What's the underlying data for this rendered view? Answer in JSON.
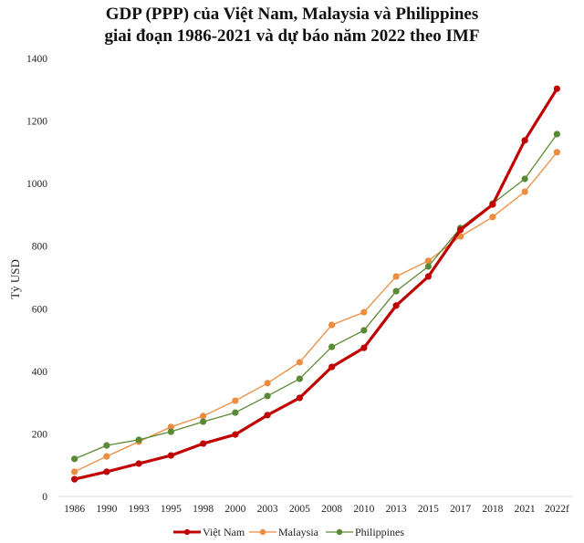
{
  "chart_data": {
    "type": "line",
    "title": [
      "GDP (PPP) của Việt Nam, Malaysia và Philippines",
      "giai đoạn 1986-2021 và dự báo năm 2022 theo IMF"
    ],
    "xlabel": "",
    "ylabel": "Tỷ USD",
    "ylim": [
      0,
      1400
    ],
    "yticks": [
      "0",
      "200",
      "400",
      "600",
      "800",
      "1000",
      "1200",
      "1400"
    ],
    "ytick_values": [
      0,
      200,
      400,
      600,
      800,
      1000,
      1200,
      1400
    ],
    "categories": [
      "1986",
      "1990",
      "1993",
      "1995",
      "1998",
      "2000",
      "2003",
      "2005",
      "2008",
      "2010",
      "2013",
      "2015",
      "2017",
      "2018",
      "2021",
      "2022f"
    ],
    "grid": false,
    "legend_position": "bottom",
    "series": [
      {
        "name": "Việt Nam",
        "color": "#c00000",
        "values": [
          55,
          79,
          105,
          131,
          169,
          198,
          260,
          315,
          414,
          475,
          610,
          703,
          852,
          933,
          1138,
          1303
        ]
      },
      {
        "name": "Malaysia",
        "color": "#ed8b3e",
        "values": [
          79,
          128,
          175,
          222,
          257,
          306,
          362,
          429,
          548,
          589,
          703,
          753,
          831,
          893,
          974,
          1100
        ]
      },
      {
        "name": "Philippines",
        "color": "#5a8a36",
        "values": [
          120,
          163,
          181,
          207,
          239,
          268,
          321,
          376,
          478,
          531,
          656,
          735,
          858,
          936,
          1015,
          1158
        ]
      }
    ]
  }
}
